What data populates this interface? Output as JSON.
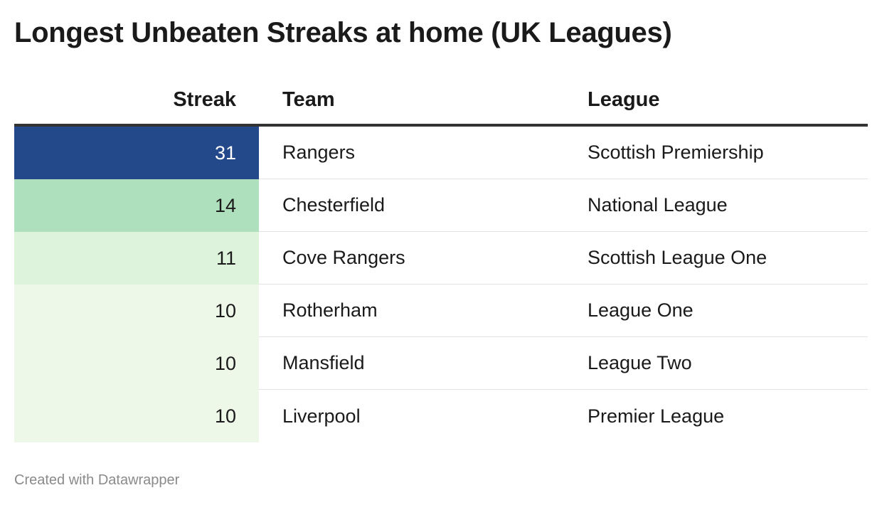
{
  "title": "Longest Unbeaten Streaks at home (UK Leagues)",
  "footer": "Created with Datawrapper",
  "chart_data": {
    "type": "table",
    "title": "Longest Unbeaten Streaks at home (UK Leagues)",
    "columns": [
      "Streak",
      "Team",
      "League"
    ],
    "rows": [
      {
        "streak": "31",
        "team": "Rangers",
        "league": "Scottish Premiership",
        "fill": "#24498b",
        "text_color": "#ffffff"
      },
      {
        "streak": "14",
        "team": "Chesterfield",
        "league": "National League",
        "fill": "#aee0bd",
        "text_color": "#1a1a1a"
      },
      {
        "streak": "11",
        "team": "Cove Rangers",
        "league": "Scottish League One",
        "fill": "#ddf3dc",
        "text_color": "#1a1a1a"
      },
      {
        "streak": "10",
        "team": "Rotherham",
        "league": "League One",
        "fill": "#eef8e8",
        "text_color": "#1a1a1a"
      },
      {
        "streak": "10",
        "team": "Mansfield",
        "league": "League Two",
        "fill": "#eef8e8",
        "text_color": "#1a1a1a"
      },
      {
        "streak": "10",
        "team": "Liverpool",
        "league": "Premier League",
        "fill": "#eef8e8",
        "text_color": "#1a1a1a"
      }
    ]
  }
}
